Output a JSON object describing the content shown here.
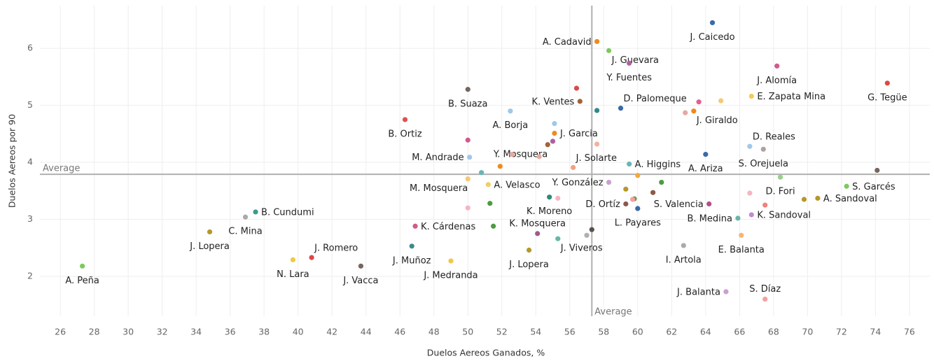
{
  "chart_data": {
    "type": "scatter",
    "x_label": "Duelos Aereos Ganados, %",
    "y_label": "Duelos Aereos por 90",
    "xlim": [
      24.8,
      77.2
    ],
    "ylim": [
      1.3,
      6.75
    ],
    "xticks": [
      26,
      28,
      30,
      32,
      34,
      36,
      38,
      40,
      42,
      44,
      46,
      48,
      50,
      52,
      54,
      56,
      58,
      60,
      62,
      64,
      66,
      68,
      70,
      72,
      74,
      76
    ],
    "yticks": [
      2,
      3,
      4,
      5,
      6
    ],
    "grid": true,
    "x_average": {
      "value": 57.3,
      "label": "Average"
    },
    "y_average": {
      "value": 3.79,
      "label": "Average"
    },
    "labels": [
      "A. Peña",
      "J. Lopera",
      "C. Mina",
      "B. Cundumi",
      "N. Lara",
      "J. Romero",
      "J. Vacca",
      "J. Muñoz",
      "J. Medranda",
      "K. Cárdenas",
      null,
      null,
      null,
      "M. Mosquera",
      "A. Velasco",
      "K. Moreno",
      null,
      "Y. González",
      "K. Mosquera",
      "J. Lopera",
      "J. Viveros",
      null,
      null,
      "D. Ortíz",
      null,
      null,
      null,
      "L. Payares",
      null,
      null,
      null,
      "A. Higgins",
      "I. Artola",
      "J. Balanta",
      "S. Díaz",
      "E. Balanta",
      "B. Medina",
      "K. Sandoval",
      "S. Valencia",
      null,
      null,
      "A. Sandoval",
      null,
      "S. Garcés",
      "D. Fori",
      null,
      "S. Orejuela",
      "D. Reales",
      "A. Ariza",
      "J. Giraldo",
      null,
      "D. Palomeque",
      "E. Zapata Mina",
      null,
      null,
      "J. Alomía",
      "G. Tegüe",
      "J. Caicedo",
      "A. Cadavid",
      "J. Guevara",
      "Y. Fuentes",
      "K. Ventes",
      null,
      null,
      "J. Garcia",
      null,
      null,
      null,
      "Y. Mosquera",
      "A. Borja",
      "J. Solarte",
      "M. Andrade",
      null,
      null,
      null,
      null,
      "B. Suaza",
      "B. Ortiz",
      null
    ],
    "x": [
      27.3,
      34.8,
      36.9,
      37.5,
      39.7,
      40.8,
      43.7,
      46.7,
      49.0,
      46.9,
      50.0,
      51.3,
      51.5,
      50.0,
      51.2,
      54.8,
      55.3,
      58.3,
      54.1,
      53.6,
      55.3,
      57.0,
      57.3,
      59.3,
      59.3,
      59.8,
      59.7,
      60.0,
      60.9,
      61.4,
      60.0,
      59.5,
      62.7,
      65.2,
      67.5,
      66.1,
      65.9,
      66.7,
      64.2,
      66.6,
      67.5,
      70.6,
      69.8,
      72.3,
      68.4,
      74.1,
      67.4,
      66.6,
      64.0,
      63.3,
      62.8,
      59.0,
      66.7,
      64.9,
      63.6,
      68.2,
      74.7,
      64.4,
      57.6,
      58.3,
      59.5,
      56.6,
      56.4,
      57.6,
      55.1,
      55.1,
      55.0,
      57.6,
      54.7,
      52.5,
      56.2,
      50.1,
      50.8,
      51.9,
      52.6,
      54.2,
      50.0,
      46.3,
      50.0
    ],
    "y": [
      2.18,
      2.78,
      3.04,
      3.13,
      2.29,
      2.33,
      2.18,
      2.53,
      2.27,
      2.88,
      3.2,
      3.28,
      2.88,
      3.71,
      3.61,
      3.39,
      3.37,
      3.65,
      2.75,
      2.46,
      2.66,
      2.72,
      2.82,
      3.27,
      3.53,
      3.36,
      3.35,
      3.19,
      3.47,
      3.65,
      3.77,
      3.97,
      2.54,
      1.73,
      1.6,
      2.72,
      3.02,
      3.08,
      3.27,
      3.46,
      3.25,
      3.37,
      3.35,
      3.58,
      3.74,
      3.86,
      4.23,
      4.28,
      4.14,
      4.9,
      4.87,
      4.95,
      5.16,
      5.08,
      5.06,
      5.69,
      5.39,
      6.45,
      6.12,
      5.96,
      5.74,
      5.07,
      5.3,
      4.91,
      4.51,
      4.68,
      4.37,
      4.32,
      4.31,
      4.9,
      3.91,
      4.09,
      3.82,
      3.93,
      4.14,
      4.1,
      5.28,
      4.75,
      4.39
    ],
    "colors": [
      "#7dc95e",
      "#b5982a",
      "#aaaaaa",
      "#3d9a8b",
      "#f0c84a",
      "#d94a4a",
      "#74665f",
      "#3d8a8b",
      "#f0c84a",
      "#d05a8a",
      "#f4b6c2",
      "#4e9a43",
      "#4e9a43",
      "#f7c875",
      "#f0d060",
      "#2e8a7a",
      "#f4b6c2",
      "#c9a0d0",
      "#a05a8a",
      "#b5982a",
      "#6ab5a8",
      "#b0b0b0",
      "#5a4f4a",
      "#8b5a4a",
      "#b5982a",
      "#6a9a3a",
      "#f4a0a0",
      "#3a6aa8",
      "#8b5a4a",
      "#4e9a43",
      "#f4a83a",
      "#6ab5b5",
      "#aaaaaa",
      "#c9a0d0",
      "#f4a0a0",
      "#f7b575",
      "#6ab5a8",
      "#c08ad0",
      "#b0508a",
      "#f4b6c2",
      "#f08080",
      "#b5982a",
      "#b5982a",
      "#7dc95e",
      "#9ad08a",
      "#74665f",
      "#b0a0a0",
      "#a0c8e8",
      "#3a6aa8",
      "#f08a1a",
      "#e8a8a0",
      "#3a6aa8",
      "#f7c85a",
      "#f7c875",
      "#e06090",
      "#d05a8a",
      "#d94a4a",
      "#3a6aa8",
      "#f08a1a",
      "#7dc95e",
      "#b060a0",
      "#a0643a",
      "#d94a4a",
      "#2e8a8a",
      "#f08a1a",
      "#a0c8e8",
      "#b060a0",
      "#f4b0a0",
      "#a0643a",
      "#a0c8e8",
      "#f4a080",
      "#a0c8e8",
      "#6ab5b5",
      "#f08a1a",
      "#e8a8a0",
      "#e8a8a0",
      "#74665f",
      "#e05050",
      "#d05a8a"
    ]
  }
}
